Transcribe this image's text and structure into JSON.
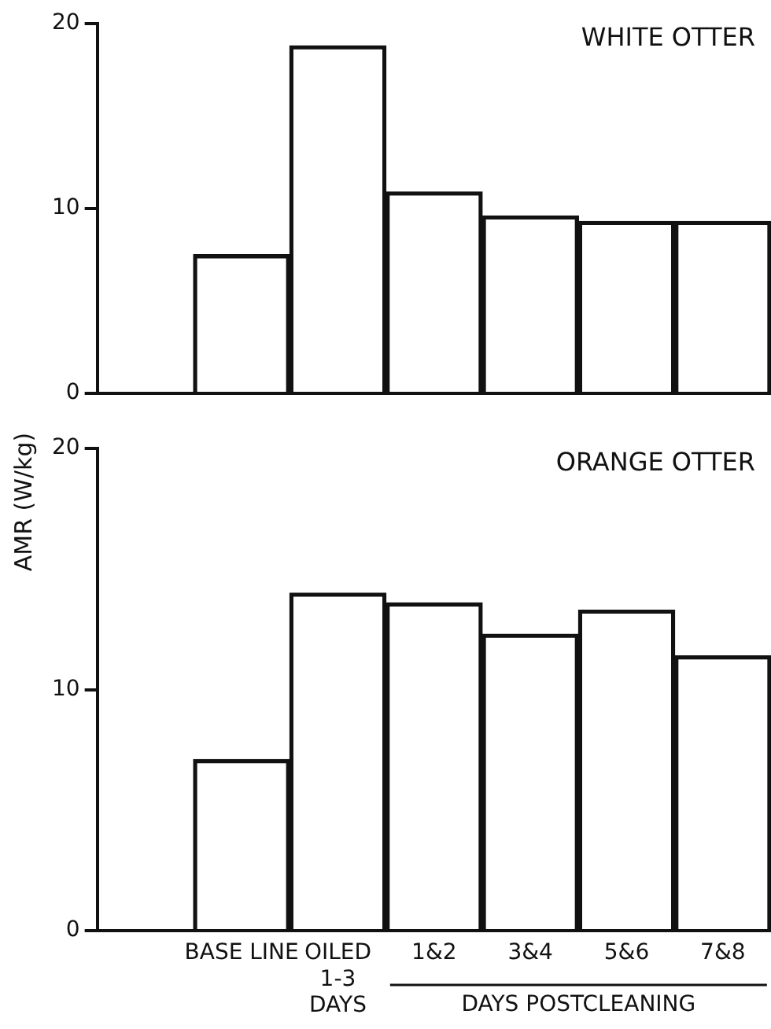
{
  "chart_data": [
    {
      "type": "bar",
      "title": "WHITE OTTER",
      "ylabel": "AMR (W/kg)",
      "categories": [
        null,
        null,
        null,
        null,
        null,
        null,
        null
      ],
      "values": [
        null,
        7.5,
        18.8,
        10.9,
        9.6,
        9.3,
        9.3
      ],
      "color": "#111111",
      "ylim": [
        0,
        20
      ],
      "yticks": [
        0,
        10,
        20
      ],
      "grid": false,
      "legend": false,
      "tick_labels": "y"
    },
    {
      "type": "bar",
      "title": "ORANGE OTTER",
      "xlabel": "DAYS POSTCLEANING",
      "categories": [
        null,
        "BASE LINE",
        "OILED\n1-3\nDAYS",
        "1&2",
        "3&4",
        "5&6",
        "7&8"
      ],
      "values": [
        null,
        7.1,
        14.0,
        13.6,
        12.3,
        13.3,
        11.4
      ],
      "color": "#111111",
      "ylim": [
        0,
        20
      ],
      "yticks": [
        0,
        10,
        20
      ],
      "grid": false,
      "legend": false
    }
  ]
}
